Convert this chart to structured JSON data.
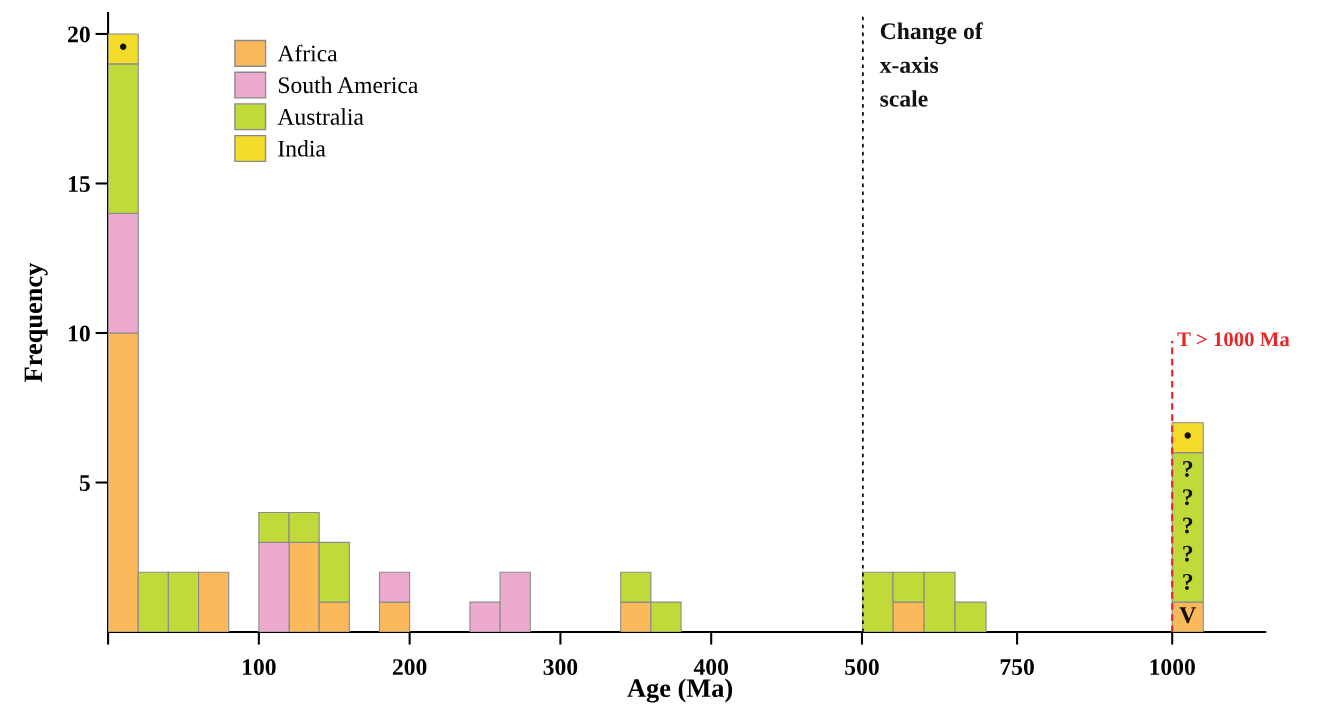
{
  "chart_data": [
    {
      "type": "bar",
      "stacked": true,
      "xlabel": "Age (Ma)",
      "ylabel": "Frequency",
      "legend": "top left",
      "grid": false,
      "x": [
        10,
        30,
        50,
        70,
        110,
        130,
        150,
        190,
        250,
        270,
        350,
        370
      ],
      "series": [
        {
          "name": "Africa",
          "color": "#fbb95c",
          "values": [
            10,
            0,
            0,
            2,
            0,
            3,
            1,
            1,
            0,
            0,
            1,
            0
          ]
        },
        {
          "name": "South America",
          "color": "#ecaacf",
          "values": [
            4,
            0,
            0,
            0,
            3,
            0,
            0,
            1,
            1,
            2,
            0,
            0
          ]
        },
        {
          "name": "Australia",
          "color": "#c2d93a",
          "values": [
            5,
            2,
            2,
            0,
            1,
            1,
            2,
            0,
            0,
            0,
            1,
            1
          ]
        },
        {
          "name": "India",
          "color": "#f5dc2a",
          "values": [
            1,
            0,
            0,
            0,
            0,
            0,
            0,
            0,
            0,
            0,
            0,
            0
          ],
          "value_labels": [
            "•",
            null,
            null,
            null,
            null,
            null,
            null,
            null,
            null,
            null,
            null,
            null
          ]
        }
      ],
      "xlim": [
        0,
        500
      ],
      "xticks": [
        {
          "value": 0,
          "label": null
        },
        100,
        200,
        300,
        400
      ],
      "ylim": [
        0,
        20.7
      ],
      "yticks": [
        5,
        10,
        15,
        20
      ]
    },
    {
      "type": "bar",
      "stacked": true,
      "grid": false,
      "tick_labels": "x",
      "x": [
        525,
        575,
        625,
        675,
        1025
      ],
      "series": [
        {
          "color": "#fbb95c",
          "values": [
            0,
            1,
            0,
            0,
            1
          ],
          "value_labels": [
            null,
            null,
            null,
            null,
            "V"
          ]
        },
        {
          "color": "#c2d93a",
          "values": [
            2,
            1,
            2,
            1,
            5
          ],
          "value_labels": [
            null,
            null,
            null,
            null,
            "?\n?\n?\n?\n?"
          ]
        },
        {
          "color": "#f5dc2a",
          "values": [
            0,
            0,
            0,
            0,
            1
          ],
          "value_labels": [
            null,
            null,
            null,
            null,
            "•"
          ]
        }
      ],
      "xlim": [
        500,
        1150
      ],
      "xticks": [
        500,
        750,
        1000
      ],
      "ylim": [
        0,
        20.7
      ],
      "yticks": [
        5,
        10,
        15,
        20
      ],
      "ref_lines": [
        {
          "axis": "x",
          "value": 500,
          "label": "Change of\nx-axis\nscale",
          "color": "#111111",
          "line_style": "dotted"
        },
        {
          "axis": "x",
          "value": 1000,
          "label": "T > 1000 Ma",
          "color": "#e8262a",
          "line_style": "dashed"
        }
      ]
    }
  ]
}
